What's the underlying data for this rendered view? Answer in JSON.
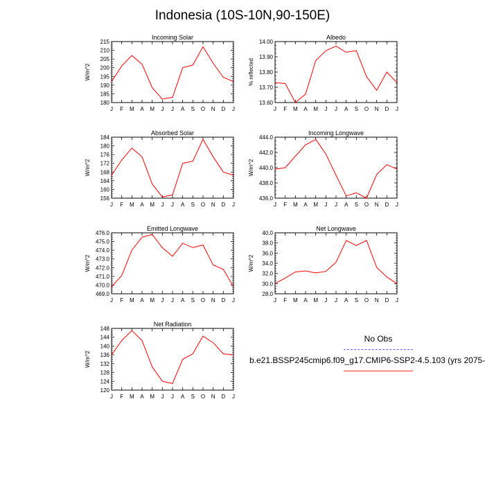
{
  "title": "Indonesia (10S-10N,90-150E)",
  "colors": {
    "model": "#ff0000",
    "obs": "#5a5aff",
    "axis": "#000000"
  },
  "months": [
    "J",
    "F",
    "M",
    "A",
    "M",
    "J",
    "J",
    "A",
    "S",
    "O",
    "N",
    "D",
    "J"
  ],
  "legend": {
    "obs_label": "No Obs",
    "model_label": "b.e21.BSSP245cmip6.f09_g17.CMIP6-SSP2-4.5.103 (yrs 2075-"
  },
  "chart_data": [
    {
      "type": "line",
      "title": "Incoming Solar",
      "ylabel": "W/m^2",
      "ylim": [
        180,
        215
      ],
      "yticks": [
        "180",
        "185",
        "190",
        "195",
        "200",
        "205",
        "210",
        "215"
      ],
      "values": [
        192,
        201,
        207,
        202,
        188.5,
        182,
        183,
        200,
        201.5,
        212,
        202.5,
        194.5,
        192
      ]
    },
    {
      "type": "line",
      "title": "Albedo",
      "ylabel": "% reflected",
      "ylim": [
        13.6,
        14.0
      ],
      "yticks": [
        "13.60",
        "13.70",
        "13.80",
        "13.90",
        "14.00"
      ],
      "values": [
        13.73,
        13.725,
        13.6,
        13.655,
        13.875,
        13.94,
        13.97,
        13.93,
        13.94,
        13.77,
        13.68,
        13.8,
        13.73
      ]
    },
    {
      "type": "line",
      "title": "Absorbed Solar",
      "ylabel": "W/m^2",
      "ylim": [
        156,
        184
      ],
      "yticks": [
        "156",
        "160",
        "164",
        "168",
        "172",
        "176",
        "180",
        "184"
      ],
      "values": [
        166.5,
        173.5,
        179,
        175,
        162.5,
        156.5,
        157.5,
        172,
        173,
        183,
        175,
        168,
        166.5
      ]
    },
    {
      "type": "line",
      "title": "Incoming Longwave",
      "ylabel": "W/m^2",
      "ylim": [
        436.0,
        444.0
      ],
      "yticks": [
        "436.0",
        "438.0",
        "440.0",
        "442.0",
        "444.0"
      ],
      "values": [
        439.8,
        440.0,
        441.5,
        443.0,
        443.7,
        441.8,
        439.0,
        436.3,
        436.7,
        436.0,
        439.1,
        440.4,
        439.8
      ]
    },
    {
      "type": "line",
      "title": "Emitted Longwave",
      "ylabel": "W/m^2",
      "ylim": [
        469.0,
        476.0
      ],
      "yticks": [
        "469.0",
        "470.0",
        "471.0",
        "472.0",
        "473.0",
        "474.0",
        "475.0",
        "476.0"
      ],
      "values": [
        469.8,
        471.1,
        474.0,
        475.5,
        475.8,
        474.3,
        473.3,
        474.8,
        474.3,
        474.6,
        472.3,
        471.8,
        469.8
      ]
    },
    {
      "type": "line",
      "title": "Net Longwave",
      "ylabel": "W/m^2",
      "ylim": [
        28.0,
        40.0
      ],
      "yticks": [
        "28.0",
        "30.0",
        "32.0",
        "34.0",
        "36.0",
        "38.0",
        "40.0"
      ],
      "values": [
        30.0,
        31.1,
        32.3,
        32.5,
        32.1,
        32.4,
        34.2,
        38.5,
        37.5,
        38.5,
        33.2,
        31.3,
        30.0
      ]
    },
    {
      "type": "line",
      "title": "Net Radiation",
      "ylabel": "W/m^2",
      "ylim": [
        120,
        148
      ],
      "yticks": [
        "120",
        "124",
        "128",
        "132",
        "136",
        "140",
        "144",
        "148"
      ],
      "values": [
        136,
        142.5,
        147,
        142.5,
        130.5,
        124,
        123,
        134,
        136.5,
        144.5,
        141.5,
        136.5,
        136
      ]
    }
  ]
}
